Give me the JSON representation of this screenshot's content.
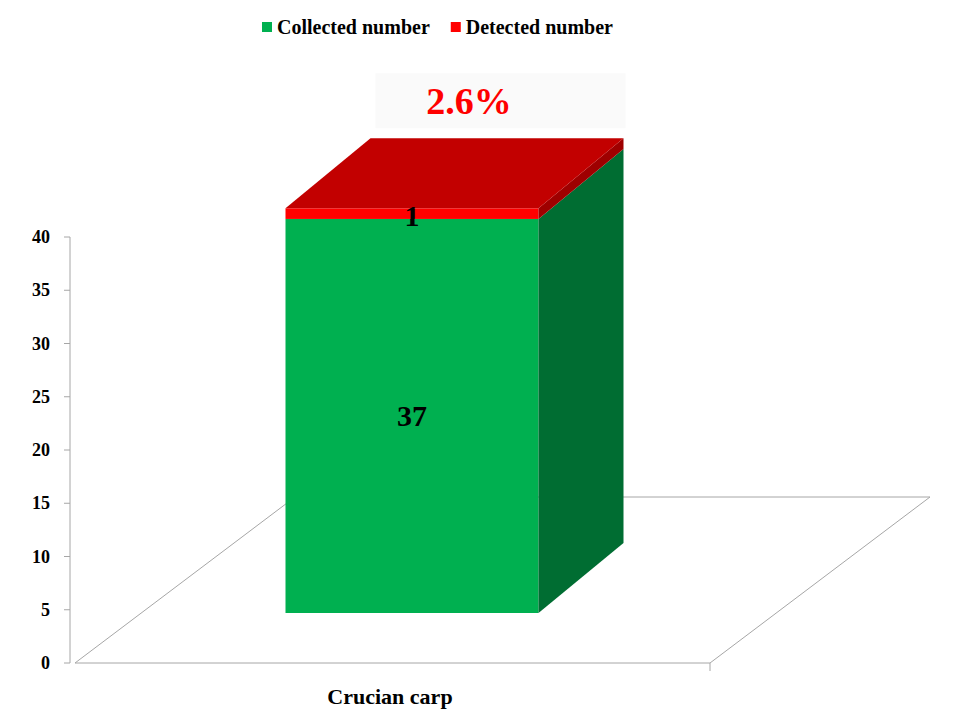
{
  "chart_data": {
    "type": "bar",
    "stacked": true,
    "categories": [
      "Crucian carp"
    ],
    "series": [
      {
        "name": "Collected number",
        "color": "#00b050",
        "values": [
          37
        ]
      },
      {
        "name": "Detected number",
        "color": "#ff0000",
        "values": [
          1
        ]
      }
    ],
    "ylim": [
      0,
      40
    ],
    "yticks": [
      0,
      5,
      10,
      15,
      20,
      25,
      30,
      35,
      40
    ],
    "data_labels": true,
    "legend": "top",
    "annotations": [
      "2.6%"
    ]
  }
}
